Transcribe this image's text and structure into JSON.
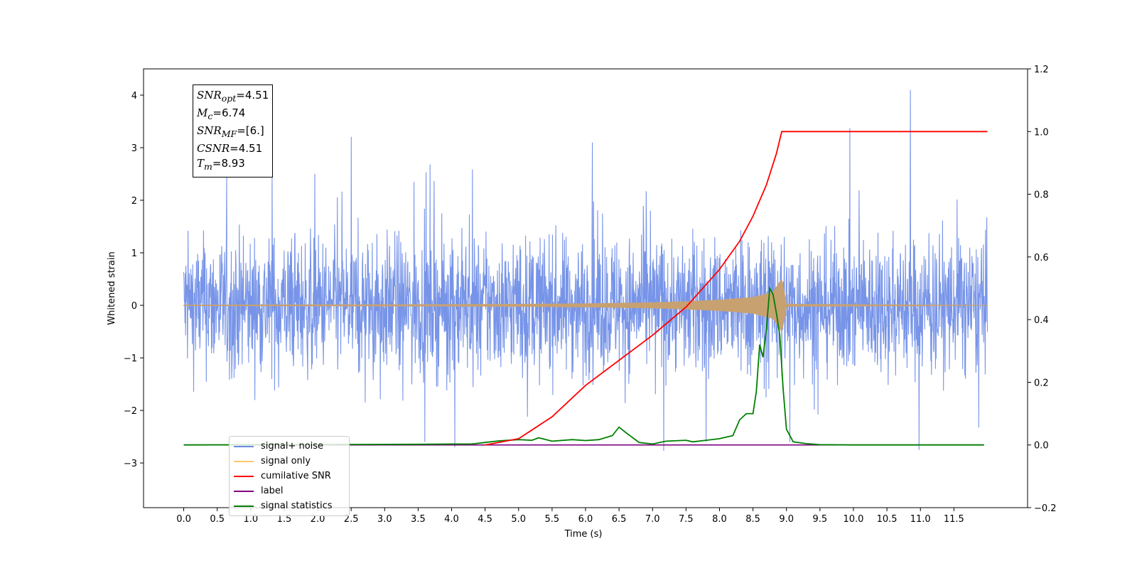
{
  "chart_data": {
    "type": "line",
    "xlabel": "Time (s)",
    "ylabel": "Whitened strain",
    "xlim": [
      -0.6,
      12.6
    ],
    "ylim": [
      -3.85,
      4.5
    ],
    "ylim_right": [
      -0.2,
      1.2
    ],
    "x_ticks": [
      "0.0",
      "0.5",
      "1.0",
      "1.5",
      "2.0",
      "2.5",
      "3.0",
      "3.5",
      "4.0",
      "4.5",
      "5.0",
      "5.5",
      "6.0",
      "6.5",
      "7.0",
      "7.5",
      "8.0",
      "8.5",
      "9.0",
      "9.5",
      "10.0",
      "10.5",
      "11.0",
      "11.5"
    ],
    "y_ticks_left": [
      "4",
      "3",
      "2",
      "1",
      "0",
      "−1",
      "−2",
      "−3"
    ],
    "y_ticks_right": [
      "1.2",
      "1.0",
      "0.8",
      "0.6",
      "0.4",
      "0.2",
      "0.0",
      "−0.2"
    ],
    "grid": false,
    "legend_position": "lower-left",
    "series": [
      {
        "name": "signal+ noise",
        "color": "#6b8be6",
        "axis": "left",
        "x_range": [
          0.0,
          12.0
        ],
        "envelope_typical": [
          -1.5,
          1.6
        ],
        "extreme_peaks": [
          [
            1.32,
            2.6
          ],
          [
            6.1,
            3.1
          ],
          [
            10.85,
            4.1
          ],
          [
            10.98,
            -2.75
          ],
          [
            4.05,
            -2.7
          ],
          [
            7.8,
            -2.6
          ],
          [
            3.6,
            -2.6
          ],
          [
            9.05,
            -2.6
          ]
        ]
      },
      {
        "name": "signal only",
        "color": "#c8a171",
        "axis": "left",
        "x": [
          0.0,
          2.0,
          4.0,
          5.0,
          6.0,
          7.0,
          7.5,
          8.0,
          8.5,
          8.8,
          8.93,
          9.0,
          12.0
        ],
        "amplitude": [
          0.005,
          0.01,
          0.015,
          0.02,
          0.03,
          0.05,
          0.07,
          0.1,
          0.15,
          0.25,
          0.5,
          0.02,
          0.0
        ]
      },
      {
        "name": "cumilative SNR",
        "color": "#ff0000",
        "axis": "right",
        "x": [
          4.5,
          5.0,
          5.5,
          6.0,
          6.5,
          7.0,
          7.5,
          8.0,
          8.3,
          8.5,
          8.7,
          8.85,
          8.93,
          12.0
        ],
        "values": [
          0.0,
          0.02,
          0.09,
          0.19,
          0.27,
          0.35,
          0.44,
          0.56,
          0.65,
          0.73,
          0.83,
          0.93,
          1.0,
          1.0
        ]
      },
      {
        "name": "label",
        "color": "#800080",
        "axis": "right",
        "x": [
          0.0,
          11.95
        ],
        "values": [
          0.0,
          0.0
        ]
      },
      {
        "name": "signal statistics",
        "color": "#008000",
        "axis": "right",
        "x": [
          0.0,
          3.5,
          4.0,
          4.3,
          4.5,
          4.7,
          5.0,
          5.2,
          5.3,
          5.5,
          5.8,
          6.0,
          6.2,
          6.4,
          6.5,
          6.6,
          6.8,
          7.0,
          7.2,
          7.5,
          7.6,
          7.8,
          8.0,
          8.2,
          8.3,
          8.4,
          8.5,
          8.55,
          8.6,
          8.65,
          8.7,
          8.75,
          8.8,
          8.85,
          8.9,
          8.95,
          9.0,
          9.1,
          9.3,
          9.5,
          10.0,
          10.5,
          11.95
        ],
        "values": [
          0.0,
          0.002,
          0.003,
          0.003,
          0.008,
          0.013,
          0.017,
          0.015,
          0.023,
          0.012,
          0.017,
          0.014,
          0.017,
          0.03,
          0.057,
          0.04,
          0.008,
          0.003,
          0.012,
          0.015,
          0.01,
          0.015,
          0.02,
          0.03,
          0.08,
          0.1,
          0.1,
          0.17,
          0.32,
          0.28,
          0.37,
          0.5,
          0.48,
          0.42,
          0.35,
          0.18,
          0.05,
          0.01,
          0.004,
          0.001,
          0.0,
          0.0,
          0.0
        ]
      }
    ],
    "annotation": {
      "snr_opt": "=4.51",
      "mc": "=6.74",
      "snr_mf": "=[6.]",
      "csnr": "=4.51",
      "tm": "=8.93"
    }
  }
}
